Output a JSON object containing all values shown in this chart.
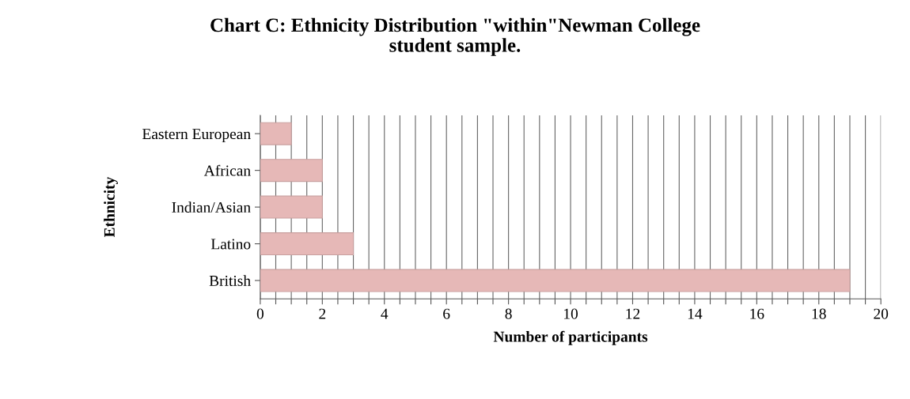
{
  "chart_data": {
    "type": "bar",
    "orientation": "horizontal",
    "title": "Chart C: Ethnicity Distribution \"within\"Newman College\nstudent sample.",
    "xlabel": "Number of participants",
    "ylabel": "Ethnicity",
    "categories": [
      "Eastern European",
      "African",
      "Indian/Asian",
      "Latino",
      "British"
    ],
    "values": [
      1,
      2,
      2,
      3,
      19
    ],
    "color": "#e6b8b7",
    "xlim": [
      0,
      20
    ],
    "xticks": [
      0,
      {
        "value": 0.5,
        "label": null
      },
      {
        "value": 1,
        "label": null
      },
      {
        "value": 1.5,
        "label": null
      },
      2,
      {
        "value": 2.5,
        "label": null
      },
      {
        "value": 3,
        "label": null
      },
      {
        "value": 3.5,
        "label": null
      },
      4,
      {
        "value": 4.5,
        "label": null
      },
      {
        "value": 5,
        "label": null
      },
      {
        "value": 5.5,
        "label": null
      },
      6,
      {
        "value": 6.5,
        "label": null
      },
      {
        "value": 7,
        "label": null
      },
      {
        "value": 7.5,
        "label": null
      },
      8,
      {
        "value": 8.5,
        "label": null
      },
      {
        "value": 9,
        "label": null
      },
      {
        "value": 9.5,
        "label": null
      },
      10,
      {
        "value": 10.5,
        "label": null
      },
      {
        "value": 11,
        "label": null
      },
      {
        "value": 11.5,
        "label": null
      },
      12,
      {
        "value": 12.5,
        "label": null
      },
      {
        "value": 13,
        "label": null
      },
      {
        "value": 13.5,
        "label": null
      },
      14,
      {
        "value": 14.5,
        "label": null
      },
      {
        "value": 15,
        "label": null
      },
      {
        "value": 15.5,
        "label": null
      },
      16,
      {
        "value": 16.5,
        "label": null
      },
      {
        "value": 17,
        "label": null
      },
      {
        "value": 17.5,
        "label": null
      },
      18,
      {
        "value": 18.5,
        "label": null
      },
      {
        "value": 19,
        "label": null
      },
      {
        "value": 19.5,
        "label": null
      },
      20
    ],
    "grid": "x",
    "legend": false
  }
}
